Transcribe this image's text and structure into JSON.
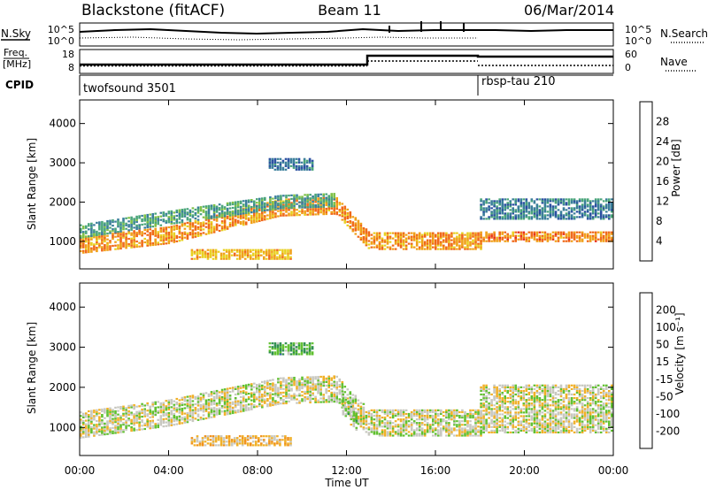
{
  "header": {
    "station": "Blackstone (fitACF)",
    "beam": "Beam 11",
    "date": "06/Mar/2014"
  },
  "noise_panel": {
    "left_label": "N.Sky",
    "left_ticks": [
      "10^5",
      "10^0"
    ],
    "right_ticks": [
      "10^5",
      "10^0"
    ],
    "right_label": "N.Search"
  },
  "freq_panel": {
    "left_label_line1": "Freq.",
    "left_label_line2": "[MHz]",
    "left_ticks": [
      "18",
      "8"
    ],
    "right_ticks": [
      "60",
      "0"
    ],
    "right_label": "Nave"
  },
  "cpid_panel": {
    "label": "CPID",
    "programs": [
      {
        "name": "twofsound 3501",
        "start_ut": 0
      },
      {
        "name": "rbsp-tau 210",
        "start_ut": 18
      }
    ]
  },
  "colors": {
    "power_scale": [
      "#2a1fe0",
      "#2a4fa0",
      "#3a7e9a",
      "#4aa57a",
      "#7ec046",
      "#e8d020",
      "#f0a018",
      "#f06818",
      "#e82818"
    ],
    "velocity_scale": [
      "#e02020",
      "#f06018",
      "#f09018",
      "#f0b028",
      "#c8c8c0",
      "#60c030",
      "#2e8e4e",
      "#2e5fa0",
      "#2a2fd0"
    ]
  },
  "chart_data": [
    {
      "type": "heatmap",
      "name": "power",
      "ylabel": "Slant Range [km]",
      "xlabel": "Time UT",
      "xlim": [
        0,
        24
      ],
      "ylim": [
        300,
        4600
      ],
      "x_ticks": [
        "00:00",
        "04:00",
        "08:00",
        "12:00",
        "16:00",
        "20:00",
        "00:00"
      ],
      "y_ticks": [
        "1000",
        "2000",
        "3000",
        "4000"
      ],
      "colorbar": {
        "label": "Power [dB]",
        "range": [
          0,
          32
        ],
        "tick_labels": [
          "4",
          "8",
          "12",
          "16",
          "20",
          "24",
          "28"
        ]
      },
      "bands": [
        {
          "x": [
            0,
            4,
            9,
            11.5,
            13,
            18
          ],
          "y_center": [
            950,
            1200,
            1900,
            1950,
            1050,
            1050
          ],
          "half_width": 220,
          "value": 24
        },
        {
          "x": [
            0,
            4,
            9,
            11.5
          ],
          "y_center": [
            1300,
            1650,
            2050,
            2100
          ],
          "half_width": 180,
          "value": 12
        },
        {
          "x": [
            5,
            9.5
          ],
          "y_center": [
            700,
            700
          ],
          "half_width": 120,
          "value": 22
        },
        {
          "x": [
            18,
            24
          ],
          "y_center": [
            1150,
            1150
          ],
          "half_width": 120,
          "value": 25
        },
        {
          "x": [
            18,
            24
          ],
          "y_center": [
            1850,
            1850
          ],
          "half_width": 250,
          "value": 9
        },
        {
          "x": [
            8.5,
            10.5
          ],
          "y_center": [
            3000,
            3000
          ],
          "half_width": 150,
          "value": 8
        }
      ]
    },
    {
      "type": "heatmap",
      "name": "velocity",
      "ylabel": "Slant Range [km]",
      "xlabel": "Time UT",
      "xlim": [
        0,
        24
      ],
      "ylim": [
        300,
        4600
      ],
      "x_ticks": [
        "00:00",
        "04:00",
        "08:00",
        "12:00",
        "16:00",
        "20:00",
        "00:00"
      ],
      "y_ticks": [
        "1000",
        "2000",
        "3000",
        "4000"
      ],
      "colorbar": {
        "label": "Velocity [m s⁻¹]",
        "range": [
          -250,
          250
        ],
        "tick_labels": [
          "-200",
          "-100",
          "-50",
          "-15",
          "15",
          "50",
          "100",
          "200"
        ]
      },
      "bands": [
        {
          "x": [
            0,
            4,
            9,
            11.5,
            13,
            18
          ],
          "y_center": [
            1100,
            1400,
            1950,
            2000,
            1150,
            1150
          ],
          "half_width": 330,
          "value": 0
        },
        {
          "x": [
            5,
            9.5
          ],
          "y_center": [
            700,
            700
          ],
          "half_width": 120,
          "value": -60
        },
        {
          "x": [
            11.8,
            12.5
          ],
          "y_center": [
            1600,
            1100
          ],
          "half_width": 250,
          "value": 30
        },
        {
          "x": [
            18,
            24
          ],
          "y_center": [
            1500,
            1500
          ],
          "half_width": 600,
          "value": 0
        },
        {
          "x": [
            8.5,
            10.5
          ],
          "y_center": [
            3000,
            3000
          ],
          "half_width": 150,
          "value": 80
        }
      ]
    }
  ]
}
